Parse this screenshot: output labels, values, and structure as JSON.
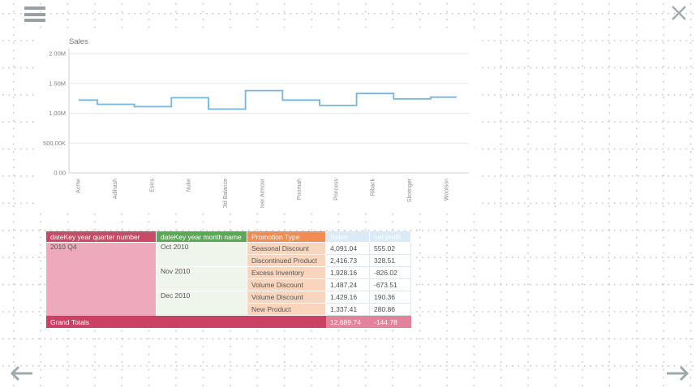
{
  "nav": {
    "menu_tooltip": "menu",
    "close_tooltip": "close",
    "prev_tooltip": "previous page",
    "next_tooltip": "next page"
  },
  "colors": {
    "line": "#74b6dc",
    "icon_gray": "#9aa4a7",
    "quarter_header": "#c54b66",
    "quarter_cell": "#efa9bc",
    "month_header": "#60a55c",
    "month_cell": "#f0f5ec",
    "promo_header": "#f28c52",
    "promo_cell": "#f9d5be",
    "value_header": "#daebf7",
    "totals_label": "#cb4163",
    "totals_value": "#e28399"
  },
  "chart_data": {
    "type": "line",
    "subtype": "stepped",
    "title": "Sales",
    "xlabel": "",
    "ylabel": "",
    "ylim_millions": [
      0,
      2
    ],
    "grid": true,
    "legend": "none",
    "line_color": "#74b6dc",
    "y_ticks": [
      {
        "label": "2.00M",
        "value": 2
      },
      {
        "label": "1.50M",
        "value": 1.5
      },
      {
        "label": "1.00M",
        "value": 1
      },
      {
        "label": "500.00K",
        "value": 0.5
      },
      {
        "label": "0.00",
        "value": 0
      }
    ],
    "categories": [
      "Acme",
      "Adihash",
      "Esics",
      "Nuke",
      "Old Balance",
      "Over Armour",
      "Poomah",
      "Princess",
      "Riback",
      "Slicenger",
      "Woolson"
    ],
    "values_millions": [
      1.22,
      1.15,
      1.11,
      1.26,
      1.07,
      1.38,
      1.22,
      1.13,
      1.33,
      1.24,
      1.27
    ]
  },
  "table": {
    "columns": [
      {
        "label": "dateKey year quarter number"
      },
      {
        "label": "dateKey year month name"
      },
      {
        "label": "Promotion Type"
      },
      {
        "label": "Sales"
      },
      {
        "label": "net profit"
      }
    ],
    "rows": [
      {
        "quarter": "2010 Q4",
        "quarter_span": 6,
        "month": "Oct 2010",
        "month_span": 2,
        "promotion": "Seasonal Discount",
        "sales": "4,091.04",
        "net_profit": "555.02"
      },
      {
        "promotion": "Discontinued Product",
        "sales": "2,416.73",
        "net_profit": "328.51"
      },
      {
        "month": "Nov 2010",
        "month_span": 2,
        "promotion": "Excess Inventory",
        "sales": "1,928.16",
        "net_profit": "-826.02"
      },
      {
        "promotion": "Volume Discount",
        "sales": "1,487.24",
        "net_profit": "-673.51"
      },
      {
        "month": "Dec 2010",
        "month_span": 2,
        "promotion": "Volume Discount",
        "sales": "1,429.16",
        "net_profit": "190.36"
      },
      {
        "promotion": "New Product",
        "sales": "1,337.41",
        "net_profit": "280.86"
      }
    ],
    "grand_totals": {
      "label": "Grand Totals",
      "sales": "12,689.74",
      "net_profit": "-144.78"
    }
  }
}
